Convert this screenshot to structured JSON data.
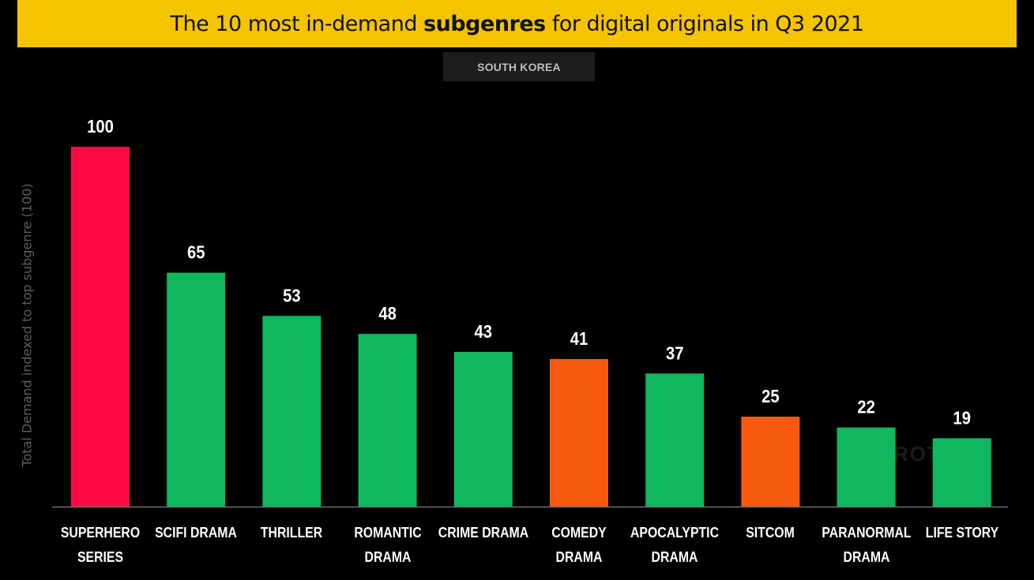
{
  "header": {
    "title_prefix": "The 10 most in-demand ",
    "title_bold": "subgenres",
    "title_suffix": " for digital originals in Q3 2021",
    "band_color": "#f5c400",
    "region": "SOUTH KOREA"
  },
  "colors": {
    "superhero": "#ff0a47",
    "drama_green": "#0fb75f",
    "comedy_orange": "#f65a0f",
    "axis": "#6e6e6e"
  },
  "watermark": "PARROT",
  "chart_data": {
    "type": "bar",
    "categories": [
      [
        "SUPERHERO",
        "SERIES"
      ],
      [
        "SCIFI DRAMA"
      ],
      [
        "THRILLER"
      ],
      [
        "ROMANTIC",
        "DRAMA"
      ],
      [
        "CRIME DRAMA"
      ],
      [
        "COMEDY",
        "DRAMA"
      ],
      [
        "APOCALYPTIC",
        "DRAMA"
      ],
      [
        "SITCOM"
      ],
      [
        "PARANORMAL",
        "DRAMA"
      ],
      [
        "LIFE STORY"
      ]
    ],
    "values": [
      100,
      65,
      53,
      48,
      43,
      41,
      37,
      25,
      22,
      19
    ],
    "bar_colors": [
      "#ff0a47",
      "#0fb75f",
      "#0fb75f",
      "#0fb75f",
      "#0fb75f",
      "#f65a0f",
      "#0fb75f",
      "#f65a0f",
      "#0fb75f",
      "#0fb75f"
    ],
    "ylabel": "Total Demand indexed to top subgenre (100)",
    "xlabel": "",
    "ylim": [
      0,
      100
    ],
    "grid": false,
    "legend": "none"
  }
}
